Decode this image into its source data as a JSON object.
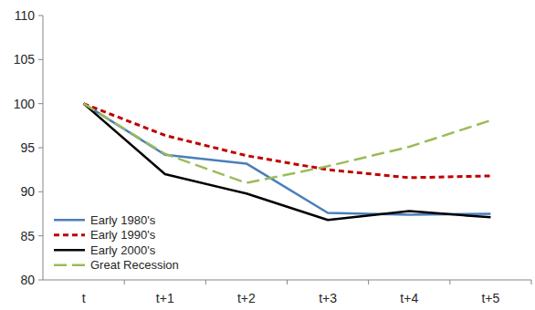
{
  "chart_data": {
    "type": "line",
    "categories": [
      "t",
      "t+1",
      "t+2",
      "t+3",
      "t+4",
      "t+5"
    ],
    "series": [
      {
        "name": "Early 1980's",
        "color": "#4a7ebb",
        "line_style": "solid",
        "values": [
          100,
          94.2,
          93.2,
          87.6,
          87.4,
          87.5
        ]
      },
      {
        "name": "Early 1990's",
        "color": "#c00000",
        "line_style": "dashed",
        "values": [
          100,
          96.4,
          94.1,
          92.5,
          91.6,
          91.8
        ]
      },
      {
        "name": "Early 2000's",
        "color": "#000000",
        "line_style": "solid",
        "values": [
          100,
          92.0,
          89.8,
          86.8,
          87.8,
          87.1
        ]
      },
      {
        "name": "Great Recession",
        "color": "#9bbb59",
        "line_style": "long-dash",
        "values": [
          100,
          94.3,
          91.0,
          92.9,
          95.1,
          98.1
        ]
      }
    ],
    "ylim": [
      80,
      110
    ],
    "yticks": [
      80,
      85,
      90,
      95,
      100,
      105,
      110
    ],
    "grid": false,
    "legend": "bottom-left"
  }
}
